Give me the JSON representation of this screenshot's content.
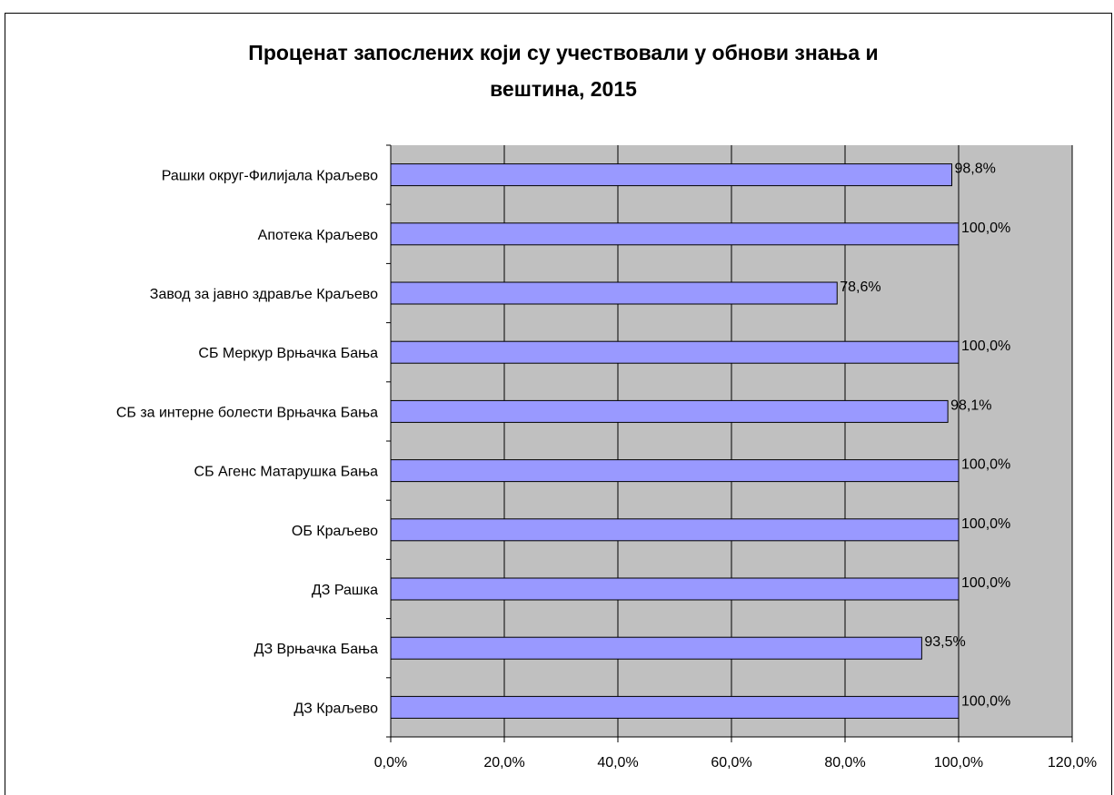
{
  "chart_data": {
    "type": "bar",
    "orientation": "horizontal",
    "title_lines": [
      "Проценат запослених који су учествовали у обнови знања и",
      "вештина, 2015"
    ],
    "categories": [
      "Рашки округ-Филијала Краљево",
      "Апотека Краљево",
      "Завод за јавно здравље Краљево",
      "СБ Меркур Врњачка Бања",
      "СБ за интерне болести Врњачка Бања",
      "СБ Агенс Матарушка Бања",
      "ОБ Краљево",
      "ДЗ Рашка",
      "ДЗ Врњачка Бања",
      "ДЗ Краљево"
    ],
    "values": [
      98.8,
      100.0,
      78.6,
      100.0,
      98.1,
      100.0,
      100.0,
      100.0,
      93.5,
      100.0
    ],
    "data_labels": [
      "98,8%",
      "100,0%",
      "78,6%",
      "100,0%",
      "98,1%",
      "100,0%",
      "100,0%",
      "100,0%",
      "93,5%",
      "100,0%"
    ],
    "xlim": [
      0,
      120
    ],
    "x_ticks": [
      0,
      20,
      40,
      60,
      80,
      100,
      120
    ],
    "x_tick_labels": [
      "0,0%",
      "20,0%",
      "40,0%",
      "60,0%",
      "80,0%",
      "100,0%",
      "120,0%"
    ],
    "grid": true,
    "legend": "none",
    "colors": {
      "bar_fill": "#9999ff",
      "bar_stroke": "#000000",
      "plot_background": "#c0c0c0",
      "gridline": "#000000"
    }
  }
}
